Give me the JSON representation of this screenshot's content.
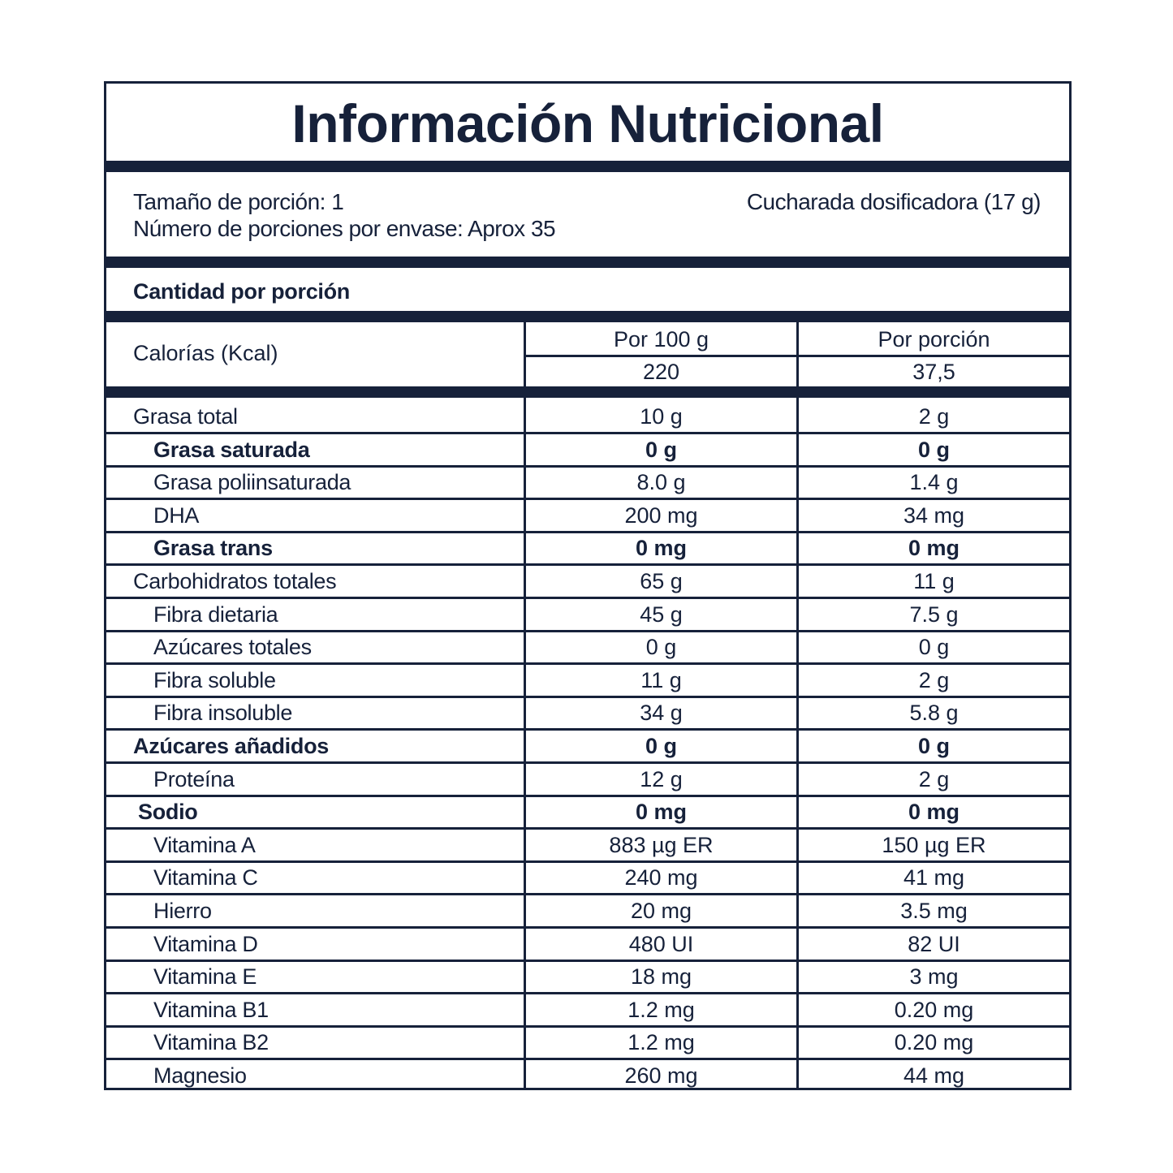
{
  "title": "Información Nutricional",
  "serving": {
    "size_label": "Tamaño de porción: 1",
    "servings_label": "Número de porciones por envase: Aprox 35",
    "size_detail": "Cucharada dosificadora (17 g)"
  },
  "amount_header": "Cantidad por porción",
  "calories": {
    "label": "Calorías (Kcal)",
    "col1_header": "Por 100 g",
    "col2_header": "Por porción",
    "col1_value": "220",
    "col2_value": "37,5"
  },
  "colors": {
    "ink": "#16213a",
    "background": "#ffffff"
  },
  "rows": [
    {
      "name": "Grasa total",
      "per100": "10 g",
      "perServing": "2 g",
      "bold": false,
      "indent": false
    },
    {
      "name": "Grasa saturada",
      "per100": "0 g",
      "perServing": "0 g",
      "bold": true,
      "indent": true
    },
    {
      "name": "Grasa poliinsaturada",
      "per100": "8.0 g",
      "perServing": "1.4 g",
      "bold": false,
      "indent": true
    },
    {
      "name": "DHA",
      "per100": "200 mg",
      "perServing": "34 mg",
      "bold": false,
      "indent": true
    },
    {
      "name": "Grasa trans",
      "per100": "0 mg",
      "perServing": "0 mg",
      "bold": true,
      "indent": true
    },
    {
      "name": "Carbohidratos totales",
      "per100": "65 g",
      "perServing": "11 g",
      "bold": false,
      "indent": false
    },
    {
      "name": "Fibra dietaria",
      "per100": "45 g",
      "perServing": "7.5 g",
      "bold": false,
      "indent": true
    },
    {
      "name": "Azúcares totales",
      "per100": "0 g",
      "perServing": "0 g",
      "bold": false,
      "indent": true
    },
    {
      "name": "Fibra soluble",
      "per100": "11 g",
      "perServing": "2 g",
      "bold": false,
      "indent": true
    },
    {
      "name": "Fibra insoluble",
      "per100": "34 g",
      "perServing": "5.8 g",
      "bold": false,
      "indent": true
    },
    {
      "name": "Azúcares añadidos",
      "per100": "0 g",
      "perServing": "0 g",
      "bold": true,
      "indent": false
    },
    {
      "name": "Proteína",
      "per100": "12 g",
      "perServing": "2 g",
      "bold": false,
      "indent": true
    },
    {
      "name": "Sodio",
      "per100": "0 mg",
      "perServing": "0 mg",
      "bold": true,
      "indent": false
    },
    {
      "name": "Vitamina A",
      "per100": "883 µg ER",
      "perServing": "150 µg ER",
      "bold": false,
      "indent": true
    },
    {
      "name": "Vitamina C",
      "per100": "240 mg",
      "perServing": "41 mg",
      "bold": false,
      "indent": true
    },
    {
      "name": "Hierro",
      "per100": "20 mg",
      "perServing": "3.5 mg",
      "bold": false,
      "indent": true
    },
    {
      "name": "Vitamina D",
      "per100": "480 UI",
      "perServing": "82 UI",
      "bold": false,
      "indent": true
    },
    {
      "name": "Vitamina E",
      "per100": "18 mg",
      "perServing": "3 mg",
      "bold": false,
      "indent": true
    },
    {
      "name": "Vitamina B1",
      "per100": "1.2 mg",
      "perServing": "0.20 mg",
      "bold": false,
      "indent": true
    },
    {
      "name": "Vitamina B2",
      "per100": "1.2 mg",
      "perServing": "0.20 mg",
      "bold": false,
      "indent": true
    },
    {
      "name": "Magnesio",
      "per100": "260 mg",
      "perServing": "44 mg",
      "bold": false,
      "indent": true
    }
  ]
}
